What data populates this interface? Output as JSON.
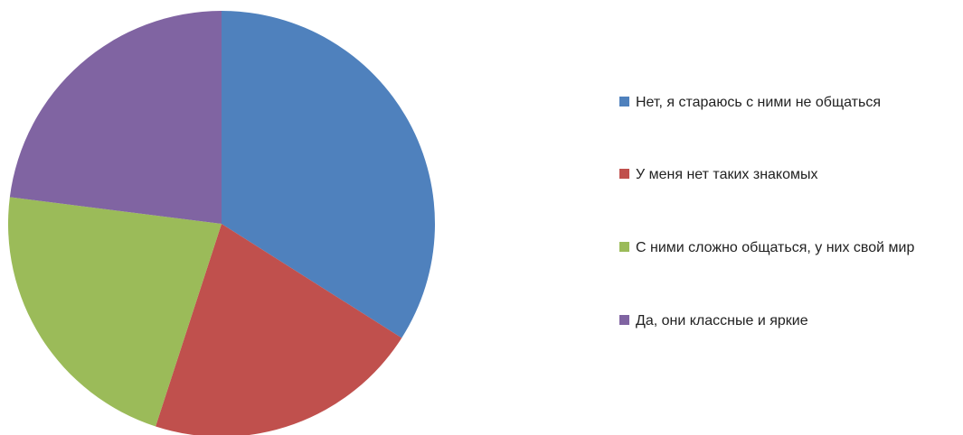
{
  "chart_data": {
    "type": "pie",
    "categories": [
      "Нет, я стараюсь с ними не общаться",
      "У меня нет таких знакомых",
      "С ними сложно общаться, у них свой мир",
      "Да, они классные и яркие"
    ],
    "values": [
      34,
      21,
      22,
      23
    ],
    "colors": [
      "#4f81bd",
      "#c0504d",
      "#9bbb59",
      "#8064a2"
    ]
  }
}
